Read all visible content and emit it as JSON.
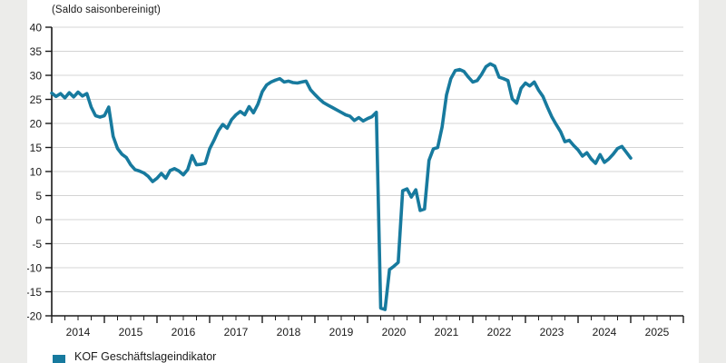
{
  "page": {
    "background_color": "#ececea",
    "card_background": "#ffffff"
  },
  "chart": {
    "note": "(Saldo saisonbereinigt)",
    "legend_label": "KOF Geschäftslageindikator",
    "line_color": "#177a9e",
    "grid_color": "#d4d4d4",
    "axis_color": "#1a1a1a"
  },
  "chart_data": {
    "type": "line",
    "title": "",
    "note": "(Saldo saisonbereinigt)",
    "legend": [
      "KOF Geschäftslageindikator"
    ],
    "legend_position": "bottom-left",
    "grid": true,
    "ylim": [
      -20,
      40
    ],
    "y_tick_step": 5,
    "x_axis": {
      "years": [
        "2014",
        "2015",
        "2016",
        "2017",
        "2018",
        "2019",
        "2020",
        "2021",
        "2022",
        "2023",
        "2024",
        "2025"
      ],
      "minor_ticks_per_year": 4
    },
    "series": [
      {
        "name": "KOF Geschäftslageindikator",
        "start": "2014-01",
        "frequency": "monthly",
        "values": [
          26.3,
          25.6,
          26.2,
          25.3,
          26.4,
          25.5,
          26.5,
          25.7,
          26.2,
          23.4,
          21.6,
          21.3,
          21.6,
          23.4,
          17.3,
          14.8,
          13.6,
          12.9,
          11.4,
          10.4,
          10.1,
          9.7,
          9.0,
          7.9,
          8.6,
          9.6,
          8.6,
          10.2,
          10.6,
          10.1,
          9.3,
          10.4,
          13.3,
          11.4,
          11.5,
          11.7,
          14.7,
          16.5,
          18.5,
          19.8,
          19.0,
          20.8,
          21.8,
          22.5,
          21.8,
          23.5,
          22.2,
          24.0,
          26.6,
          28.0,
          28.6,
          29.0,
          29.3,
          28.6,
          28.8,
          28.5,
          28.4,
          28.6,
          28.8,
          27.0,
          26.0,
          25.1,
          24.3,
          23.8,
          23.3,
          22.8,
          22.3,
          21.8,
          21.5,
          20.6,
          21.2,
          20.5,
          21.0,
          21.4,
          22.3,
          -18.4,
          -18.7,
          -10.4,
          -9.7,
          -8.9,
          6.0,
          6.4,
          4.7,
          6.2,
          1.9,
          2.2,
          12.3,
          14.7,
          15.0,
          19.3,
          25.9,
          29.3,
          31.0,
          31.2,
          30.8,
          29.6,
          28.6,
          28.9,
          30.2,
          31.8,
          32.4,
          31.9,
          29.6,
          29.3,
          28.9,
          25.1,
          24.2,
          27.3,
          28.4,
          27.8,
          28.6,
          26.9,
          25.6,
          23.4,
          21.4,
          19.8,
          18.3,
          16.2,
          16.5,
          15.4,
          14.5,
          13.2,
          13.9,
          12.6,
          11.7,
          13.5,
          11.9,
          12.6,
          13.6,
          14.8,
          15.2,
          14.0,
          12.8
        ]
      }
    ]
  }
}
